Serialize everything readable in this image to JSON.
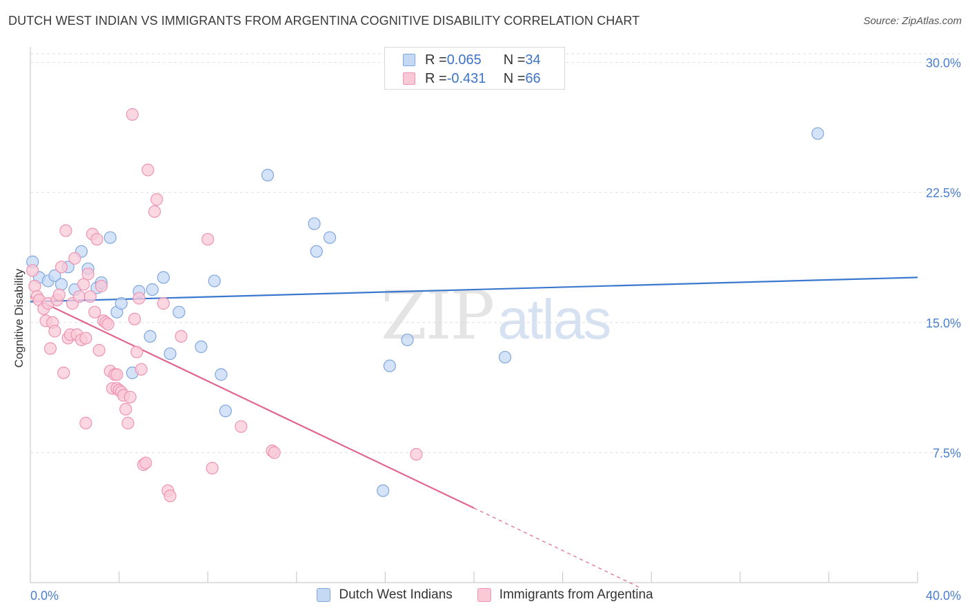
{
  "title": "DUTCH WEST INDIAN VS IMMIGRANTS FROM ARGENTINA COGNITIVE DISABILITY CORRELATION CHART",
  "source": "Source: ZipAtlas.com",
  "watermark": {
    "zip": "ZIP",
    "atlas": "atlas"
  },
  "colors": {
    "blue_fill": "#c5d9f5",
    "blue_stroke": "#7fa6de",
    "blue_line": "#3a78d0",
    "pink_fill": "#f9c9d8",
    "pink_stroke": "#ee93b2",
    "pink_line": "#e0648f",
    "grid": "#dddddd",
    "axis_text": "#4a7fcf"
  },
  "legend": {
    "rows": [
      {
        "r_label": "R = ",
        "r_value": "0.065",
        "n_label": "N = ",
        "n_value": "34"
      },
      {
        "r_label": "R = ",
        "r_value": "-0.431",
        "n_label": "N = ",
        "n_value": "66"
      }
    ]
  },
  "chart_data": {
    "type": "scatter",
    "title": "DUTCH WEST INDIAN VS IMMIGRANTS FROM ARGENTINA COGNITIVE DISABILITY CORRELATION CHART",
    "xlabel": "",
    "ylabel": "Cognitive Disability",
    "xlim": [
      0,
      40
    ],
    "ylim": [
      0,
      30.5
    ],
    "x_tick_labels": [
      "0.0%",
      "40.0%"
    ],
    "y_ticks": [
      7.5,
      15.0,
      22.5,
      30.0
    ],
    "y_tick_labels": [
      "7.5%",
      "15.0%",
      "22.5%",
      "30.0%"
    ],
    "grid": "horizontal dashed",
    "legend_placement": "top-center",
    "series": [
      {
        "name": "Dutch West Indians",
        "color": "#7fa6de",
        "trend": {
          "x": [
            0,
            40
          ],
          "y": [
            16.2,
            17.6
          ],
          "dashed_to": null
        },
        "points": [
          [
            0.1,
            18.5
          ],
          [
            0.4,
            17.6
          ],
          [
            0.8,
            17.4
          ],
          [
            1.1,
            17.7
          ],
          [
            1.4,
            17.2
          ],
          [
            1.7,
            18.2
          ],
          [
            2.0,
            16.9
          ],
          [
            2.3,
            19.1
          ],
          [
            2.6,
            18.1
          ],
          [
            3.0,
            17.0
          ],
          [
            3.2,
            17.3
          ],
          [
            3.6,
            19.9
          ],
          [
            3.9,
            15.6
          ],
          [
            4.1,
            16.1
          ],
          [
            4.6,
            12.1
          ],
          [
            4.9,
            16.8
          ],
          [
            5.4,
            14.2
          ],
          [
            5.5,
            16.9
          ],
          [
            6.0,
            17.6
          ],
          [
            6.3,
            13.2
          ],
          [
            6.7,
            15.6
          ],
          [
            7.7,
            13.6
          ],
          [
            8.3,
            17.4
          ],
          [
            8.8,
            9.9
          ],
          [
            8.6,
            12.0
          ],
          [
            10.7,
            23.5
          ],
          [
            12.8,
            20.7
          ],
          [
            12.9,
            19.1
          ],
          [
            13.5,
            19.9
          ],
          [
            15.9,
            5.3
          ],
          [
            16.2,
            12.5
          ],
          [
            17.0,
            14.0
          ],
          [
            21.4,
            13.0
          ],
          [
            35.5,
            25.9
          ]
        ]
      },
      {
        "name": "Immigrants from Argentina",
        "color": "#ee93b2",
        "trend": {
          "x": [
            0,
            20
          ],
          "y": [
            16.5,
            4.3
          ],
          "dashed_to": {
            "x": 27.5,
            "y": -0.3
          }
        },
        "points": [
          [
            0.1,
            18.0
          ],
          [
            0.2,
            17.1
          ],
          [
            0.3,
            16.5
          ],
          [
            0.4,
            16.3
          ],
          [
            0.6,
            15.8
          ],
          [
            0.7,
            15.1
          ],
          [
            0.8,
            16.1
          ],
          [
            0.9,
            13.5
          ],
          [
            1.0,
            15.0
          ],
          [
            1.1,
            14.5
          ],
          [
            1.2,
            16.3
          ],
          [
            1.3,
            16.6
          ],
          [
            1.4,
            18.2
          ],
          [
            1.5,
            12.1
          ],
          [
            1.6,
            20.3
          ],
          [
            1.7,
            14.1
          ],
          [
            1.8,
            14.3
          ],
          [
            1.9,
            16.1
          ],
          [
            2.0,
            18.7
          ],
          [
            2.1,
            14.3
          ],
          [
            2.2,
            16.5
          ],
          [
            2.3,
            14.0
          ],
          [
            2.4,
            17.2
          ],
          [
            2.5,
            14.1
          ],
          [
            2.6,
            17.8
          ],
          [
            2.7,
            16.5
          ],
          [
            2.8,
            20.1
          ],
          [
            2.9,
            15.6
          ],
          [
            3.0,
            19.8
          ],
          [
            3.1,
            13.4
          ],
          [
            3.2,
            17.1
          ],
          [
            3.3,
            15.1
          ],
          [
            3.4,
            15.0
          ],
          [
            3.5,
            14.9
          ],
          [
            3.6,
            12.2
          ],
          [
            3.7,
            11.2
          ],
          [
            3.8,
            12.0
          ],
          [
            3.9,
            11.2
          ],
          [
            4.0,
            11.1
          ],
          [
            4.1,
            11.0
          ],
          [
            4.2,
            10.8
          ],
          [
            4.3,
            10.0
          ],
          [
            4.4,
            9.2
          ],
          [
            4.5,
            10.7
          ],
          [
            4.6,
            27.0
          ],
          [
            4.7,
            15.2
          ],
          [
            4.8,
            13.3
          ],
          [
            4.9,
            16.4
          ],
          [
            5.0,
            12.3
          ],
          [
            5.1,
            6.8
          ],
          [
            5.2,
            6.9
          ],
          [
            5.3,
            23.8
          ],
          [
            5.6,
            21.4
          ],
          [
            5.7,
            22.1
          ],
          [
            6.0,
            16.1
          ],
          [
            6.2,
            5.3
          ],
          [
            6.3,
            5.0
          ],
          [
            6.8,
            14.2
          ],
          [
            8.0,
            19.8
          ],
          [
            8.2,
            6.6
          ],
          [
            9.5,
            9.0
          ],
          [
            10.9,
            7.6
          ],
          [
            11.0,
            7.5
          ],
          [
            17.4,
            7.4
          ],
          [
            3.9,
            12.0
          ],
          [
            2.5,
            9.2
          ]
        ]
      }
    ]
  }
}
